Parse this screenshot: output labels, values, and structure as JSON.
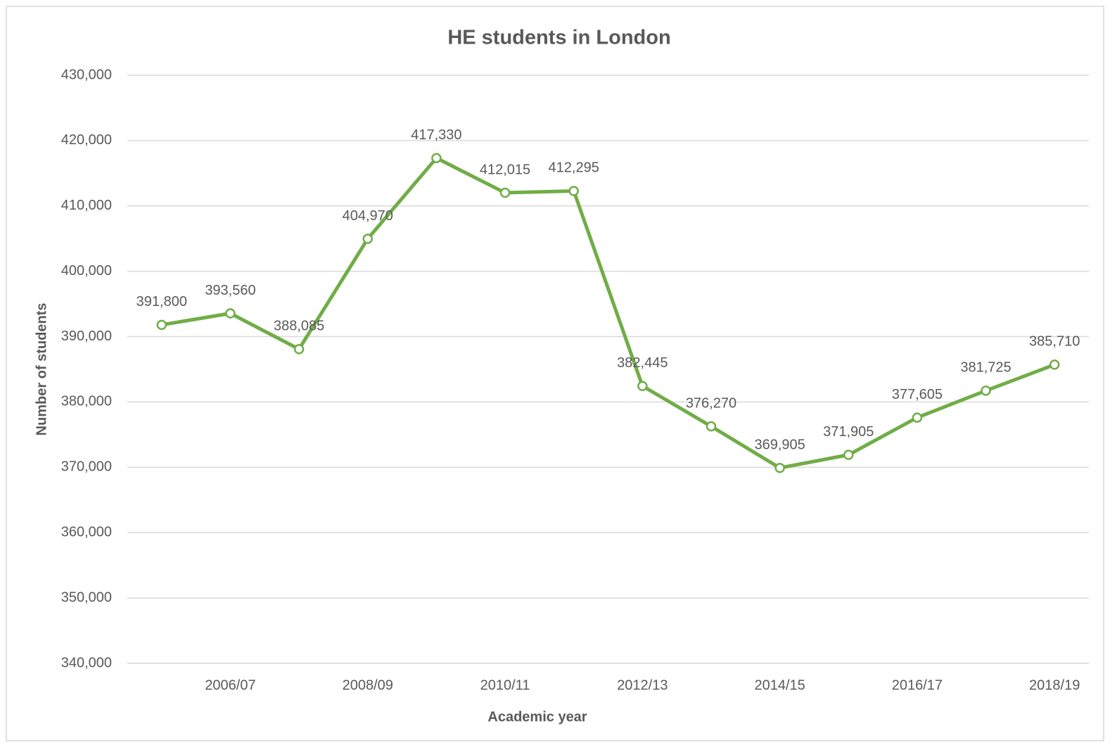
{
  "chart_data": {
    "type": "line",
    "title": "HE students in London",
    "xlabel": "Academic year",
    "ylabel": "Number of students",
    "categories": [
      null,
      "2006/07",
      null,
      "2008/09",
      null,
      "2010/11",
      null,
      "2012/13",
      null,
      "2014/15",
      null,
      "2016/17",
      null,
      "2018/19"
    ],
    "series": [
      {
        "name": "HE students",
        "color": "#70ad47",
        "values": [
          391800,
          393560,
          388085,
          404970,
          417330,
          412015,
          412295,
          382445,
          376270,
          369905,
          371905,
          377605,
          381725,
          385710
        ],
        "value_labels": [
          "391,800",
          "393,560",
          "388,085",
          "404,970",
          "417,330",
          "412,015",
          "412,295",
          "382,445",
          "376,270",
          "369,905",
          "371,905",
          "377,605",
          "381,725",
          "385,710"
        ]
      }
    ],
    "ylim": [
      340000,
      430000
    ],
    "yticks": [
      {
        "value": 340000,
        "label": "340,000"
      },
      {
        "value": 350000,
        "label": "350,000"
      },
      {
        "value": 360000,
        "label": "360,000"
      },
      {
        "value": 370000,
        "label": "370,000"
      },
      {
        "value": 380000,
        "label": "380,000"
      },
      {
        "value": 390000,
        "label": "390,000"
      },
      {
        "value": 400000,
        "label": "400,000"
      },
      {
        "value": 410000,
        "label": "410,000"
      },
      {
        "value": 420000,
        "label": "420,000"
      },
      {
        "value": 430000,
        "label": "430,000"
      }
    ],
    "grid": true
  }
}
